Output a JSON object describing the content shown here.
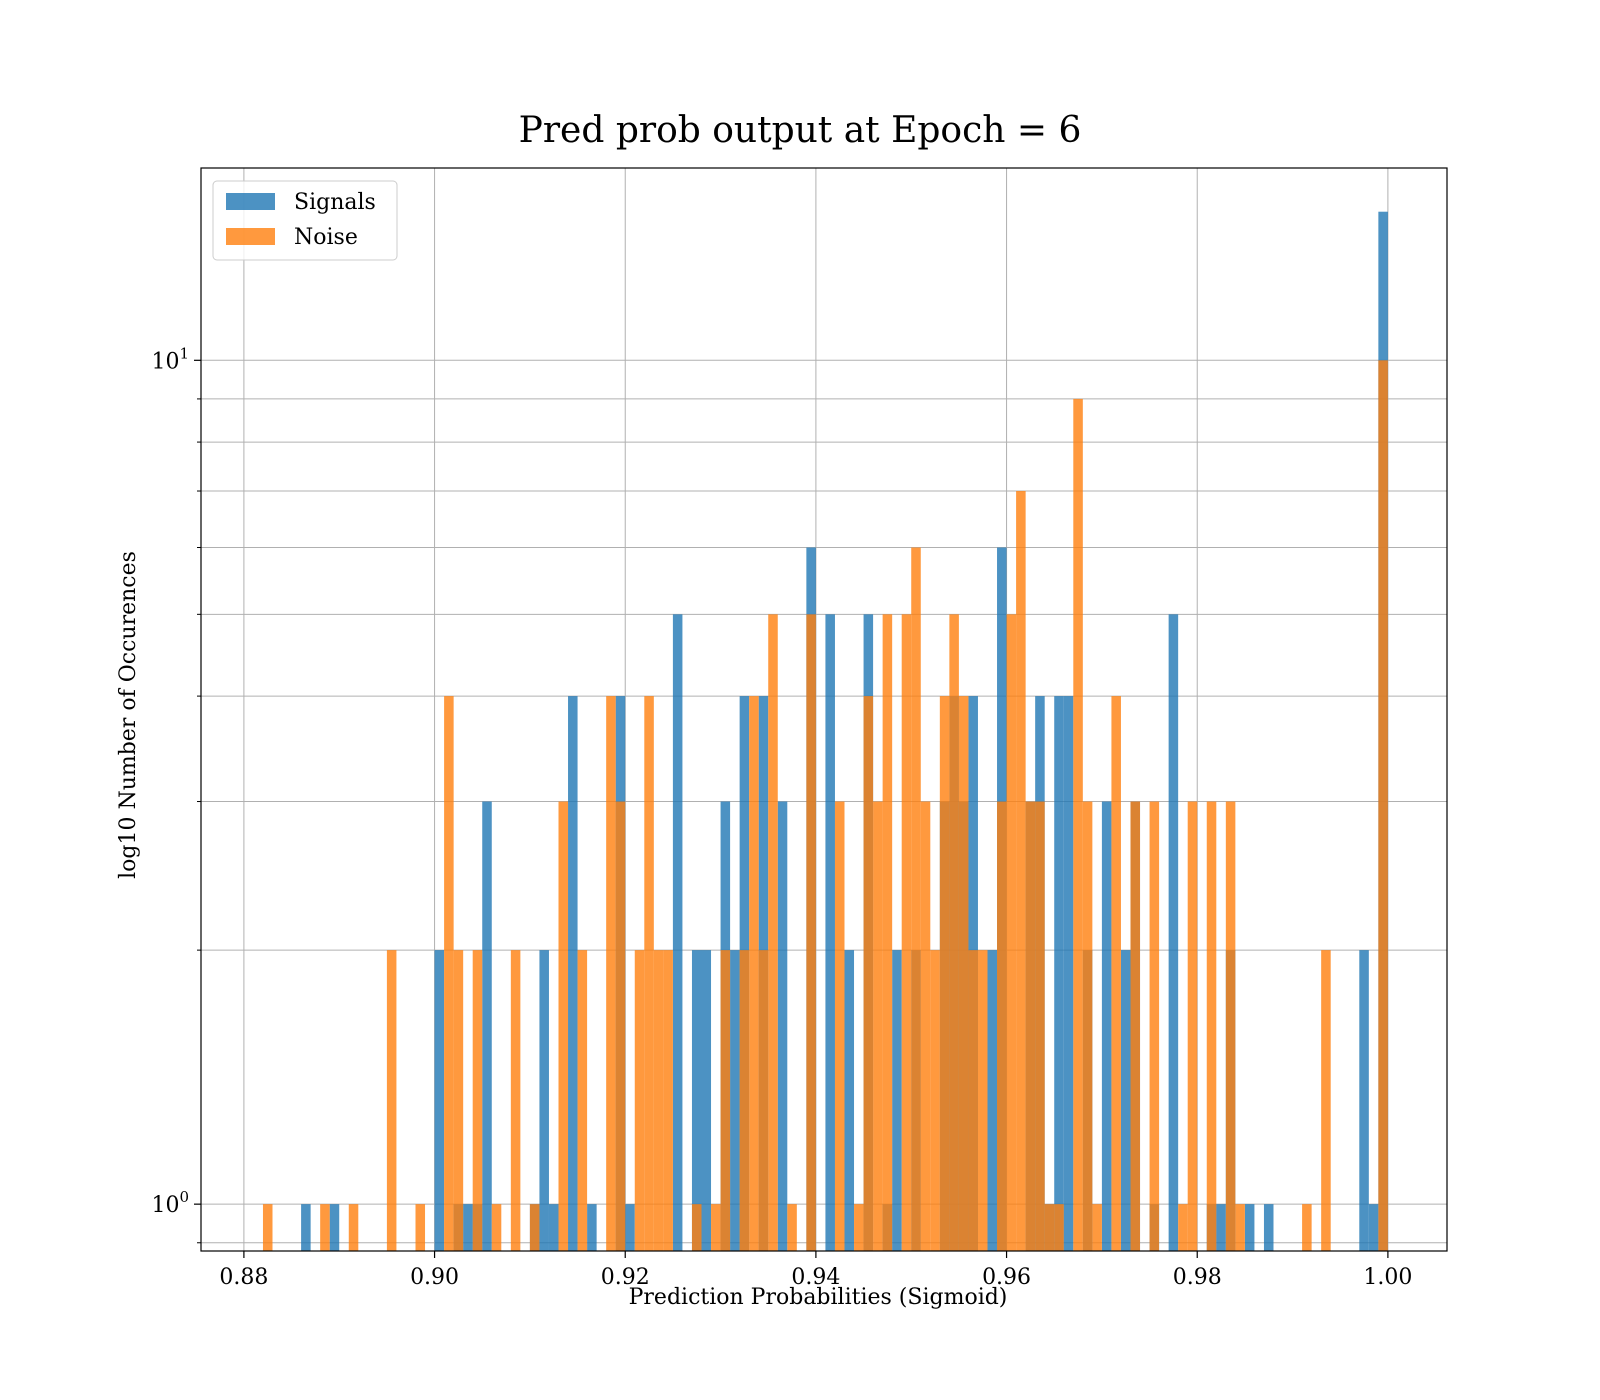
{
  "chart_data": {
    "type": "bar",
    "title": "Pred prob output at Epoch = 6",
    "xlabel": "Prediction Probabilities (Sigmoid)",
    "ylabel": "log10 Number of Occurences",
    "xlim": [
      0.8755,
      1.0062
    ],
    "ylim": [
      0.88,
      16.9
    ],
    "yscale": "log",
    "bin_width": 0.001,
    "grid": true,
    "legend_position": "top-left",
    "x_ticks": [
      {
        "value": 0.88,
        "label": "0.88"
      },
      {
        "value": 0.9,
        "label": "0.90"
      },
      {
        "value": 0.92,
        "label": "0.92"
      },
      {
        "value": 0.94,
        "label": "0.94"
      },
      {
        "value": 0.96,
        "label": "0.96"
      },
      {
        "value": 0.98,
        "label": "0.98"
      },
      {
        "value": 1.0,
        "label": "1.00"
      }
    ],
    "y_ticks_major": [
      {
        "value": 1,
        "base": "10",
        "exp": "0"
      },
      {
        "value": 10,
        "base": "10",
        "exp": "1"
      }
    ],
    "y_ticks_minor": [
      0.9,
      2,
      3,
      4,
      5,
      6,
      7,
      8,
      9
    ],
    "series": [
      {
        "name": "Signals",
        "color": "#1f77b4",
        "opacity": 0.8,
        "bars": [
          [
            0.8865,
            1
          ],
          [
            0.8895,
            1
          ],
          [
            0.9005,
            2
          ],
          [
            0.9025,
            1
          ],
          [
            0.9035,
            1
          ],
          [
            0.9045,
            1
          ],
          [
            0.9055,
            3
          ],
          [
            0.9105,
            1
          ],
          [
            0.9115,
            2
          ],
          [
            0.9125,
            1
          ],
          [
            0.9145,
            4
          ],
          [
            0.9165,
            1
          ],
          [
            0.9195,
            4
          ],
          [
            0.9205,
            1
          ],
          [
            0.9255,
            5
          ],
          [
            0.9275,
            2
          ],
          [
            0.9285,
            2
          ],
          [
            0.9305,
            3
          ],
          [
            0.9315,
            2
          ],
          [
            0.9325,
            4
          ],
          [
            0.9345,
            4
          ],
          [
            0.9365,
            3
          ],
          [
            0.9395,
            6
          ],
          [
            0.9415,
            5
          ],
          [
            0.9435,
            2
          ],
          [
            0.9455,
            5
          ],
          [
            0.9475,
            1
          ],
          [
            0.9485,
            2
          ],
          [
            0.9505,
            2
          ],
          [
            0.9535,
            3
          ],
          [
            0.9545,
            4
          ],
          [
            0.9555,
            3
          ],
          [
            0.9565,
            4
          ],
          [
            0.9585,
            2
          ],
          [
            0.9595,
            6
          ],
          [
            0.9625,
            3
          ],
          [
            0.9635,
            4
          ],
          [
            0.9645,
            1
          ],
          [
            0.9655,
            4
          ],
          [
            0.9665,
            4
          ],
          [
            0.9685,
            2
          ],
          [
            0.9705,
            3
          ],
          [
            0.9725,
            2
          ],
          [
            0.9735,
            3
          ],
          [
            0.9755,
            1
          ],
          [
            0.9775,
            5
          ],
          [
            0.9815,
            1
          ],
          [
            0.9825,
            1
          ],
          [
            0.9835,
            2
          ],
          [
            0.9855,
            1
          ],
          [
            0.9875,
            1
          ],
          [
            0.9975,
            2
          ],
          [
            0.9985,
            1
          ],
          [
            0.9995,
            15
          ]
        ]
      },
      {
        "name": "Noise",
        "color": "#ff7f0e",
        "opacity": 0.8,
        "bars": [
          [
            0.8825,
            1
          ],
          [
            0.8885,
            1
          ],
          [
            0.8915,
            1
          ],
          [
            0.8955,
            2
          ],
          [
            0.8985,
            1
          ],
          [
            0.9015,
            4
          ],
          [
            0.9025,
            2
          ],
          [
            0.9045,
            2
          ],
          [
            0.9065,
            1
          ],
          [
            0.9085,
            2
          ],
          [
            0.9105,
            1
          ],
          [
            0.9135,
            3
          ],
          [
            0.9155,
            2
          ],
          [
            0.9185,
            4
          ],
          [
            0.9195,
            3
          ],
          [
            0.9215,
            2
          ],
          [
            0.9225,
            4
          ],
          [
            0.9235,
            2
          ],
          [
            0.9245,
            2
          ],
          [
            0.9275,
            1
          ],
          [
            0.9295,
            1
          ],
          [
            0.9305,
            2
          ],
          [
            0.9325,
            2
          ],
          [
            0.9335,
            4
          ],
          [
            0.9345,
            2
          ],
          [
            0.9355,
            5
          ],
          [
            0.9375,
            1
          ],
          [
            0.9395,
            5
          ],
          [
            0.9425,
            3
          ],
          [
            0.9445,
            1
          ],
          [
            0.9455,
            4
          ],
          [
            0.9465,
            3
          ],
          [
            0.9475,
            5
          ],
          [
            0.9495,
            5
          ],
          [
            0.9505,
            6
          ],
          [
            0.9515,
            3
          ],
          [
            0.9525,
            2
          ],
          [
            0.9535,
            4
          ],
          [
            0.9545,
            5
          ],
          [
            0.9555,
            4
          ],
          [
            0.9565,
            2
          ],
          [
            0.9575,
            2
          ],
          [
            0.9595,
            3
          ],
          [
            0.9605,
            5
          ],
          [
            0.9615,
            7
          ],
          [
            0.9625,
            3
          ],
          [
            0.9635,
            3
          ],
          [
            0.9645,
            1
          ],
          [
            0.9655,
            1
          ],
          [
            0.9675,
            9
          ],
          [
            0.9685,
            3
          ],
          [
            0.9695,
            1
          ],
          [
            0.9715,
            4
          ],
          [
            0.9735,
            3
          ],
          [
            0.9755,
            3
          ],
          [
            0.9785,
            1
          ],
          [
            0.9795,
            3
          ],
          [
            0.9815,
            3
          ],
          [
            0.9835,
            3
          ],
          [
            0.9845,
            1
          ],
          [
            0.9915,
            1
          ],
          [
            0.9935,
            2
          ],
          [
            0.9995,
            10
          ]
        ]
      }
    ]
  }
}
